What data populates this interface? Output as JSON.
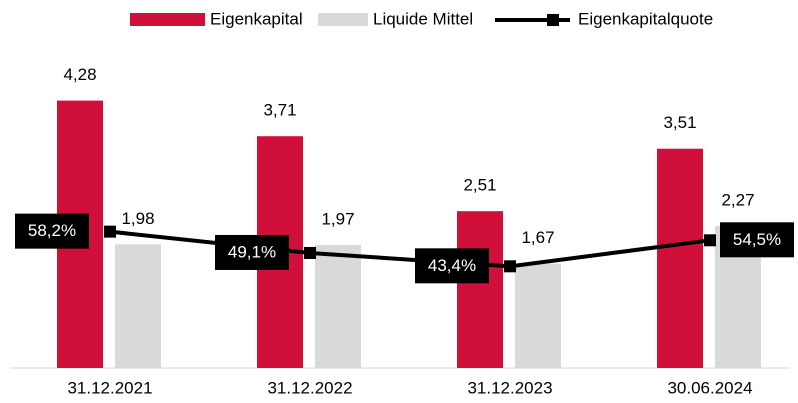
{
  "chart_data": {
    "type": "bar_line",
    "categories": [
      "31.12.2021",
      "31.12.2022",
      "31.12.2023",
      "30.06.2024"
    ],
    "series": [
      {
        "name": "Eigenkapital",
        "type": "bar",
        "color": "#d0103a",
        "values": [
          4.28,
          3.71,
          2.51,
          3.51
        ],
        "value_labels": [
          "4,28",
          "3,71",
          "2,51",
          "3,51"
        ]
      },
      {
        "name": "Liquide Mittel",
        "type": "bar",
        "color": "#d9d9d9",
        "values": [
          1.98,
          1.97,
          1.67,
          2.27
        ],
        "value_labels": [
          "1,98",
          "1,97",
          "1,67",
          "2,27"
        ]
      },
      {
        "name": "Eigenkapitalquote",
        "type": "line",
        "axis": "y2",
        "color": "#000000",
        "values": [
          58.2,
          49.1,
          43.4,
          54.5
        ],
        "value_labels": [
          "58,2%",
          "49,1%",
          "43,4%",
          "54,5%"
        ]
      }
    ],
    "ylim": [
      0,
      5.25
    ],
    "y2lim": [
      0,
      140
    ],
    "grid": false,
    "legend": "top"
  }
}
